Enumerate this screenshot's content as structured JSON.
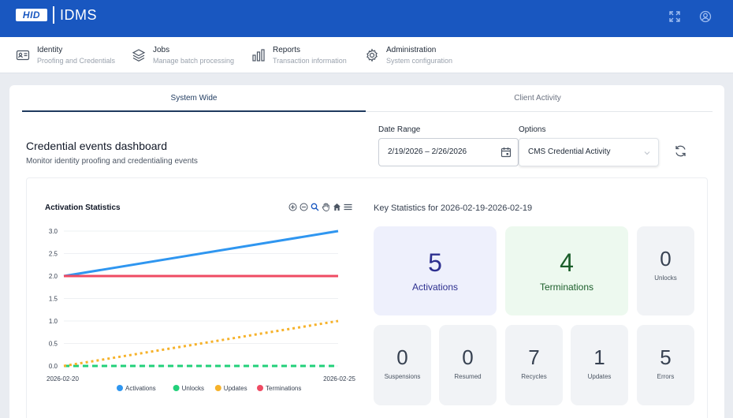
{
  "header": {
    "logo_text": "HID",
    "app_title": "IDMS"
  },
  "nav": [
    {
      "title": "Identity",
      "subtitle": "Proofing and Credentials",
      "icon": "id-card-icon"
    },
    {
      "title": "Jobs",
      "subtitle": "Manage batch processing",
      "icon": "layers-icon"
    },
    {
      "title": "Reports",
      "subtitle": "Transaction information",
      "icon": "bar-chart-icon"
    },
    {
      "title": "Administration",
      "subtitle": "System configuration",
      "icon": "gear-icon"
    }
  ],
  "tabs": [
    {
      "label": "System Wide",
      "active": true
    },
    {
      "label": "Client Activity",
      "active": false
    }
  ],
  "dashboard": {
    "title": "Credential events dashboard",
    "subtitle": "Monitor identity proofing and credentialing events"
  },
  "filters": {
    "date_range_label": "Date Range",
    "date_range_value": "2/19/2026 – 2/26/2026",
    "options_label": "Options",
    "options_value": "CMS Credential Activity"
  },
  "colors": {
    "brand": "#1957c0",
    "activations": "#2f96f0",
    "unlocks": "#22d07a",
    "updates": "#f6b22b",
    "terminations": "#ef4b63"
  },
  "chart_data": {
    "type": "line",
    "title": "Activation Statistics",
    "x": [
      "2026-02-20",
      "2026-02-25"
    ],
    "ylim": [
      0,
      3
    ],
    "yticks": [
      "0.0",
      "0.5",
      "1.0",
      "1.5",
      "2.0",
      "2.5",
      "3.0"
    ],
    "grid": true,
    "legend_position": "bottom",
    "series": [
      {
        "name": "Activations",
        "values": [
          2,
          3
        ],
        "style": "solid"
      },
      {
        "name": "Unlocks",
        "values": [
          0,
          0
        ],
        "style": "dashed"
      },
      {
        "name": "Updates",
        "values": [
          0,
          1
        ],
        "style": "dotted"
      },
      {
        "name": "Terminations",
        "values": [
          2,
          2
        ],
        "style": "solid"
      }
    ]
  },
  "key_stats": {
    "title": "Key Statistics for 2026-02-19-2026-02-19",
    "items": [
      {
        "label": "Activations",
        "value": "5"
      },
      {
        "label": "Terminations",
        "value": "4"
      },
      {
        "label": "Unlocks",
        "value": "0"
      },
      {
        "label": "Suspensions",
        "value": "0"
      },
      {
        "label": "Resumed",
        "value": "0"
      },
      {
        "label": "Recycles",
        "value": "7"
      },
      {
        "label": "Updates",
        "value": "1"
      },
      {
        "label": "Errors",
        "value": "5"
      }
    ]
  }
}
